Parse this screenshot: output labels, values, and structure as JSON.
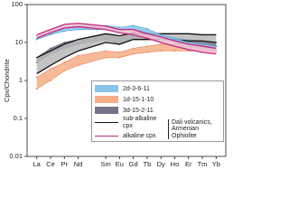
{
  "chart_data": {
    "type": "band-line",
    "y_label": "Cpx/Chondrite",
    "log_y": true,
    "x": [
      57,
      58,
      59,
      60,
      62,
      63,
      64,
      65,
      66,
      67,
      68,
      69,
      70
    ],
    "xlim": [
      56.3,
      70.7
    ],
    "xticks": [
      {
        "value": 57,
        "label": "La"
      },
      {
        "value": 58,
        "label": "Ce"
      },
      {
        "value": 59,
        "label": "Pr"
      },
      {
        "value": 60,
        "label": "Nd"
      },
      {
        "value": 62,
        "label": "Sm"
      },
      {
        "value": 63,
        "label": "Eu"
      },
      {
        "value": 64,
        "label": "Gd"
      },
      {
        "value": 65,
        "label": "Tb"
      },
      {
        "value": 66,
        "label": "Dy"
      },
      {
        "value": 67,
        "label": "Ho"
      },
      {
        "value": 68,
        "label": "Er"
      },
      {
        "value": 69,
        "label": "Tm"
      },
      {
        "value": 70,
        "label": "Yb"
      }
    ],
    "ylim": [
      0.01,
      100
    ],
    "yticks": [
      0.01,
      0.1,
      1,
      10,
      100
    ],
    "series": [
      {
        "name": "2d-3-6-11",
        "color": "#86c5ea",
        "edge": "#5aa8d8",
        "low": [
          12,
          16,
          20,
          22,
          22,
          20,
          22,
          18,
          12,
          10,
          8,
          7,
          6
        ],
        "high": [
          15,
          20,
          25,
          28,
          28,
          25,
          28,
          23,
          16,
          13,
          10,
          9,
          8
        ]
      },
      {
        "name": "1d-15-1-10",
        "color": "#f6ae86",
        "edge": "#e88d5c",
        "low": [
          0.6,
          1,
          1.8,
          2.5,
          4,
          4,
          5,
          5.5,
          6,
          6,
          6,
          6,
          6
        ],
        "high": [
          1.2,
          2,
          3,
          4.5,
          6,
          5.5,
          7,
          8,
          9,
          9,
          9,
          8.5,
          8
        ]
      },
      {
        "name": "3d-15-2-11",
        "color": "#77728a",
        "edge": "#5a5570",
        "low": [
          3,
          5,
          7,
          9,
          12,
          9,
          13,
          13,
          12,
          11,
          10,
          9,
          8
        ],
        "high": [
          4,
          7,
          10,
          12,
          16,
          13,
          18,
          16,
          14,
          13,
          12,
          11,
          10
        ]
      },
      {
        "name": "sub-alkaline cpx",
        "color": "#b8b8b8",
        "edge": "#111111",
        "line": true,
        "low": [
          1.5,
          2.5,
          4,
          6,
          10,
          9,
          12,
          12,
          12,
          12,
          11,
          11,
          10
        ],
        "high": [
          4,
          6,
          9,
          12,
          17,
          15,
          18,
          17,
          17,
          17,
          17,
          16,
          16
        ]
      },
      {
        "name": "alkaline cpx",
        "color": "#f2bfd3",
        "edge": "#c2287e",
        "line": true,
        "low": [
          13,
          18,
          24,
          26,
          22,
          18,
          16,
          13,
          10,
          8,
          6.5,
          5.5,
          5
        ],
        "high": [
          16,
          22,
          30,
          32,
          27,
          22,
          22,
          17,
          14,
          11,
          9,
          8,
          7
        ]
      }
    ],
    "annotation": "Dali volcanics, Armenian Ophiolite"
  }
}
